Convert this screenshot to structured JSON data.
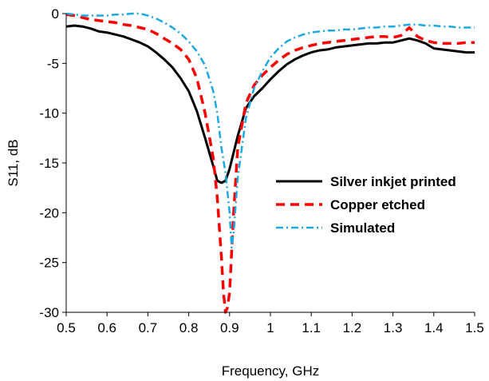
{
  "chart_data": {
    "type": "line",
    "title": "",
    "xlabel": "Frequency, GHz",
    "ylabel": "S11, dB",
    "xlim": [
      0.5,
      1.5
    ],
    "ylim": [
      -30,
      0
    ],
    "xticks": [
      0.5,
      0.6,
      0.7,
      0.8,
      0.9,
      1.0,
      1.1,
      1.2,
      1.3,
      1.4,
      1.5
    ],
    "xtick_labels": [
      "0.5",
      "0.6",
      "0.7",
      "0.8",
      "0.9",
      "1",
      "1.1",
      "1.2",
      "1.3",
      "1.4",
      "1.5"
    ],
    "yticks": [
      0,
      -5,
      -10,
      -15,
      -20,
      -25,
      -30
    ],
    "ytick_labels": [
      "0",
      "-5",
      "-10",
      "-15",
      "-20",
      "-25",
      "-30"
    ],
    "grid": false,
    "legend_position": "right",
    "series": [
      {
        "name": "Silver inkjet printed",
        "color": "#000000",
        "style": "solid",
        "x": [
          0.5,
          0.52,
          0.54,
          0.56,
          0.58,
          0.6,
          0.62,
          0.64,
          0.66,
          0.68,
          0.7,
          0.72,
          0.74,
          0.76,
          0.78,
          0.8,
          0.82,
          0.84,
          0.86,
          0.87,
          0.88,
          0.89,
          0.9,
          0.92,
          0.94,
          0.96,
          0.98,
          1.0,
          1.02,
          1.04,
          1.06,
          1.08,
          1.1,
          1.12,
          1.14,
          1.16,
          1.18,
          1.2,
          1.22,
          1.24,
          1.26,
          1.28,
          1.3,
          1.32,
          1.34,
          1.36,
          1.38,
          1.4,
          1.42,
          1.44,
          1.46,
          1.48,
          1.5
        ],
        "y": [
          -1.3,
          -1.2,
          -1.3,
          -1.5,
          -1.8,
          -1.9,
          -2.1,
          -2.3,
          -2.6,
          -2.9,
          -3.3,
          -3.9,
          -4.6,
          -5.4,
          -6.5,
          -7.8,
          -9.8,
          -12.5,
          -15.3,
          -16.8,
          -17.0,
          -16.8,
          -15.6,
          -12.3,
          -9.5,
          -8.3,
          -7.5,
          -6.6,
          -5.8,
          -5.1,
          -4.6,
          -4.2,
          -3.9,
          -3.7,
          -3.6,
          -3.4,
          -3.3,
          -3.2,
          -3.1,
          -3.0,
          -3.0,
          -2.9,
          -2.9,
          -2.7,
          -2.5,
          -2.7,
          -3.0,
          -3.5,
          -3.6,
          -3.7,
          -3.8,
          -3.9,
          -3.9
        ]
      },
      {
        "name": "Copper etched",
        "color": "#ff0000",
        "style": "dashed",
        "x": [
          0.5,
          0.52,
          0.54,
          0.56,
          0.58,
          0.6,
          0.62,
          0.64,
          0.66,
          0.68,
          0.7,
          0.72,
          0.74,
          0.76,
          0.78,
          0.8,
          0.82,
          0.84,
          0.86,
          0.87,
          0.88,
          0.885,
          0.89,
          0.895,
          0.9,
          0.91,
          0.92,
          0.94,
          0.96,
          0.98,
          1.0,
          1.02,
          1.04,
          1.06,
          1.08,
          1.1,
          1.12,
          1.14,
          1.16,
          1.18,
          1.2,
          1.22,
          1.24,
          1.26,
          1.28,
          1.3,
          1.32,
          1.34,
          1.36,
          1.38,
          1.4,
          1.42,
          1.44,
          1.46,
          1.48,
          1.5
        ],
        "y": [
          -0.1,
          -0.2,
          -0.4,
          -0.6,
          -0.7,
          -0.8,
          -0.9,
          -1.1,
          -1.2,
          -1.4,
          -1.6,
          -2.0,
          -2.5,
          -3.0,
          -3.6,
          -4.6,
          -6.5,
          -10.0,
          -14.5,
          -18.5,
          -24.5,
          -28.0,
          -30.0,
          -29.5,
          -28.0,
          -20.0,
          -13.5,
          -9.0,
          -7.2,
          -6.2,
          -5.4,
          -4.7,
          -4.1,
          -3.7,
          -3.4,
          -3.2,
          -3.0,
          -2.9,
          -2.8,
          -2.7,
          -2.6,
          -2.5,
          -2.4,
          -2.3,
          -2.3,
          -2.4,
          -2.2,
          -1.4,
          -2.3,
          -2.7,
          -2.9,
          -3.0,
          -3.0,
          -3.0,
          -2.9,
          -2.9
        ]
      },
      {
        "name": "Simulated",
        "color": "#1ca8e0",
        "style": "dashdot",
        "x": [
          0.5,
          0.52,
          0.54,
          0.56,
          0.58,
          0.6,
          0.62,
          0.64,
          0.66,
          0.68,
          0.7,
          0.72,
          0.74,
          0.76,
          0.78,
          0.8,
          0.82,
          0.84,
          0.86,
          0.87,
          0.88,
          0.89,
          0.9,
          0.905,
          0.91,
          0.92,
          0.94,
          0.96,
          0.98,
          1.0,
          1.02,
          1.04,
          1.06,
          1.08,
          1.1,
          1.12,
          1.14,
          1.16,
          1.18,
          1.2,
          1.22,
          1.24,
          1.26,
          1.28,
          1.3,
          1.32,
          1.34,
          1.36,
          1.38,
          1.4,
          1.42,
          1.44,
          1.46,
          1.48,
          1.5
        ],
        "y": [
          0.0,
          -0.1,
          -0.2,
          -0.2,
          -0.2,
          -0.2,
          -0.1,
          -0.1,
          0.0,
          0.0,
          -0.2,
          -0.5,
          -0.9,
          -1.4,
          -2.0,
          -2.8,
          -3.8,
          -5.2,
          -7.8,
          -10.0,
          -13.5,
          -16.0,
          -20.0,
          -23.5,
          -22.0,
          -16.5,
          -10.5,
          -7.5,
          -5.8,
          -4.4,
          -3.5,
          -2.8,
          -2.4,
          -2.1,
          -1.9,
          -1.8,
          -1.7,
          -1.7,
          -1.6,
          -1.6,
          -1.5,
          -1.4,
          -1.4,
          -1.3,
          -1.3,
          -1.2,
          -1.1,
          -1.1,
          -1.2,
          -1.2,
          -1.3,
          -1.3,
          -1.4,
          -1.4,
          -1.4
        ]
      }
    ]
  }
}
